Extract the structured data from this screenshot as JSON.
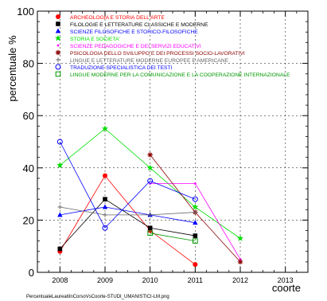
{
  "chart_data": {
    "type": "line",
    "xlabel": "coorte",
    "ylabel": "percentuale %",
    "xlim": [
      2007.5,
      2013.5
    ],
    "ylim": [
      0,
      100
    ],
    "x": [
      2008,
      2009,
      2010,
      2011,
      2012,
      2013
    ],
    "x_tick_labels": [
      "2008",
      "2009",
      "2010",
      "2011",
      "2012",
      "2013"
    ],
    "y_ticks": [
      0,
      20,
      40,
      60,
      80,
      100
    ],
    "y_tick_labels": [
      "0",
      "20",
      "40",
      "60",
      "80",
      "100"
    ],
    "grid": true,
    "legend_position": "top-right",
    "footer": "PercentualeLaureatiInCorsoVsCoorte-STUDI_UMANISTICI-LM.png",
    "series": [
      {
        "name": "ARCHEOLOGIA E STORIA DELL'ARTE",
        "color": "#ff0000",
        "marker": "circle-filled",
        "values": [
          8,
          37,
          16,
          3,
          null,
          null
        ]
      },
      {
        "name": "FILOLOGIE E LETTERATURE CLASSICHE E MODERNE",
        "color": "#000000",
        "marker": "square-filled",
        "values": [
          9,
          28,
          17,
          14,
          null,
          null
        ]
      },
      {
        "name": "SCIENZE FILOSOFICHE E STORICO-FILOSOFICHE",
        "color": "#0000ff",
        "marker": "triangle-filled",
        "values": [
          22,
          25,
          22,
          19,
          null,
          null
        ]
      },
      {
        "name": "STORIA E SOCIETA'",
        "color": "#00dd00",
        "marker": "star",
        "values": [
          41,
          55,
          40,
          25,
          13,
          null
        ]
      },
      {
        "name": "SCIENZE PEDAGOGICHE E DEI SERVIZI EDUCATIVI",
        "color": "#ff00ff",
        "marker": "dot",
        "values": [
          null,
          null,
          34,
          34,
          5,
          null
        ]
      },
      {
        "name": "PSICOLOGIA DELLO SVILUPPO E DEI PROCESSI SOCIO-LAVORATIVI",
        "color": "#8b0000",
        "marker": "asterisk",
        "values": [
          null,
          null,
          45,
          23,
          4,
          null
        ]
      },
      {
        "name": "LINGUE E LETTERATURE MODERNE EUROPEE E AMERICANE",
        "color": "#666666",
        "marker": "plus",
        "values": [
          25,
          22,
          22,
          23,
          null,
          null
        ]
      },
      {
        "name": "TRADUZIONE SPECIALISTICA DEI TESTI",
        "color": "#0000ff",
        "marker": "circle-open",
        "values": [
          50,
          17,
          35,
          28,
          null,
          null
        ]
      },
      {
        "name": "LINGUE MODERNE PER LA COMUNICAZIONE E LA COOPERAZIONE INTERNAZIONALE",
        "color": "#009900",
        "marker": "square-open",
        "values": [
          null,
          null,
          15,
          12,
          null,
          null
        ]
      }
    ]
  }
}
